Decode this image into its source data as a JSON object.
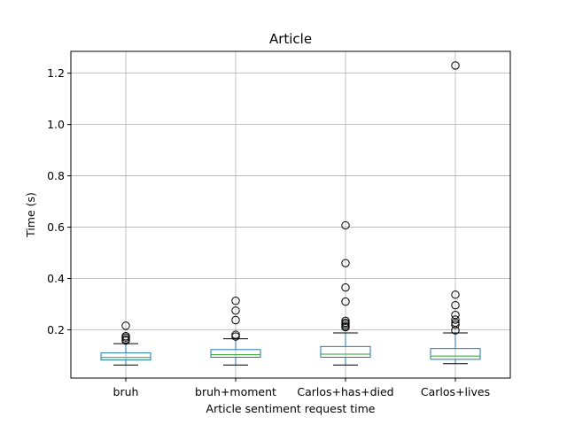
{
  "chart_data": {
    "type": "box",
    "title": "Article",
    "xlabel": "Article sentiment request time",
    "ylabel": "Time (s)",
    "ylim": [
      0.012,
      1.285
    ],
    "yticks": [
      "0.2",
      "0.4",
      "0.6",
      "0.8",
      "1.0",
      "1.2"
    ],
    "grid": true,
    "colors": {
      "box": "#1f77b4",
      "median": "#2ca02c",
      "whisker": "#000000",
      "grid": "#b0b0b0",
      "flier": "#000000"
    },
    "categories": [
      "bruh",
      "bruh+moment",
      "Carlos+has+died",
      "Carlos+lives"
    ],
    "boxes": [
      {
        "label": "bruh",
        "whislo": 0.063,
        "q1": 0.083,
        "med": 0.092,
        "q3": 0.11,
        "whishi": 0.146,
        "fliers": [
          0.158,
          0.163,
          0.17,
          0.175,
          0.216
        ]
      },
      {
        "label": "bruh+moment",
        "whislo": 0.063,
        "q1": 0.093,
        "med": 0.103,
        "q3": 0.123,
        "whishi": 0.165,
        "fliers": [
          0.174,
          0.181,
          0.238,
          0.275,
          0.313
        ]
      },
      {
        "label": "Carlos+has+died",
        "whislo": 0.063,
        "q1": 0.093,
        "med": 0.105,
        "q3": 0.135,
        "whishi": 0.188,
        "fliers": [
          0.21,
          0.215,
          0.222,
          0.228,
          0.235,
          0.31,
          0.365,
          0.46,
          0.607
        ]
      },
      {
        "label": "Carlos+lives",
        "whislo": 0.068,
        "q1": 0.085,
        "med": 0.098,
        "q3": 0.127,
        "whishi": 0.188,
        "fliers": [
          0.198,
          0.22,
          0.228,
          0.24,
          0.258,
          0.296,
          0.337,
          1.23
        ]
      }
    ]
  }
}
